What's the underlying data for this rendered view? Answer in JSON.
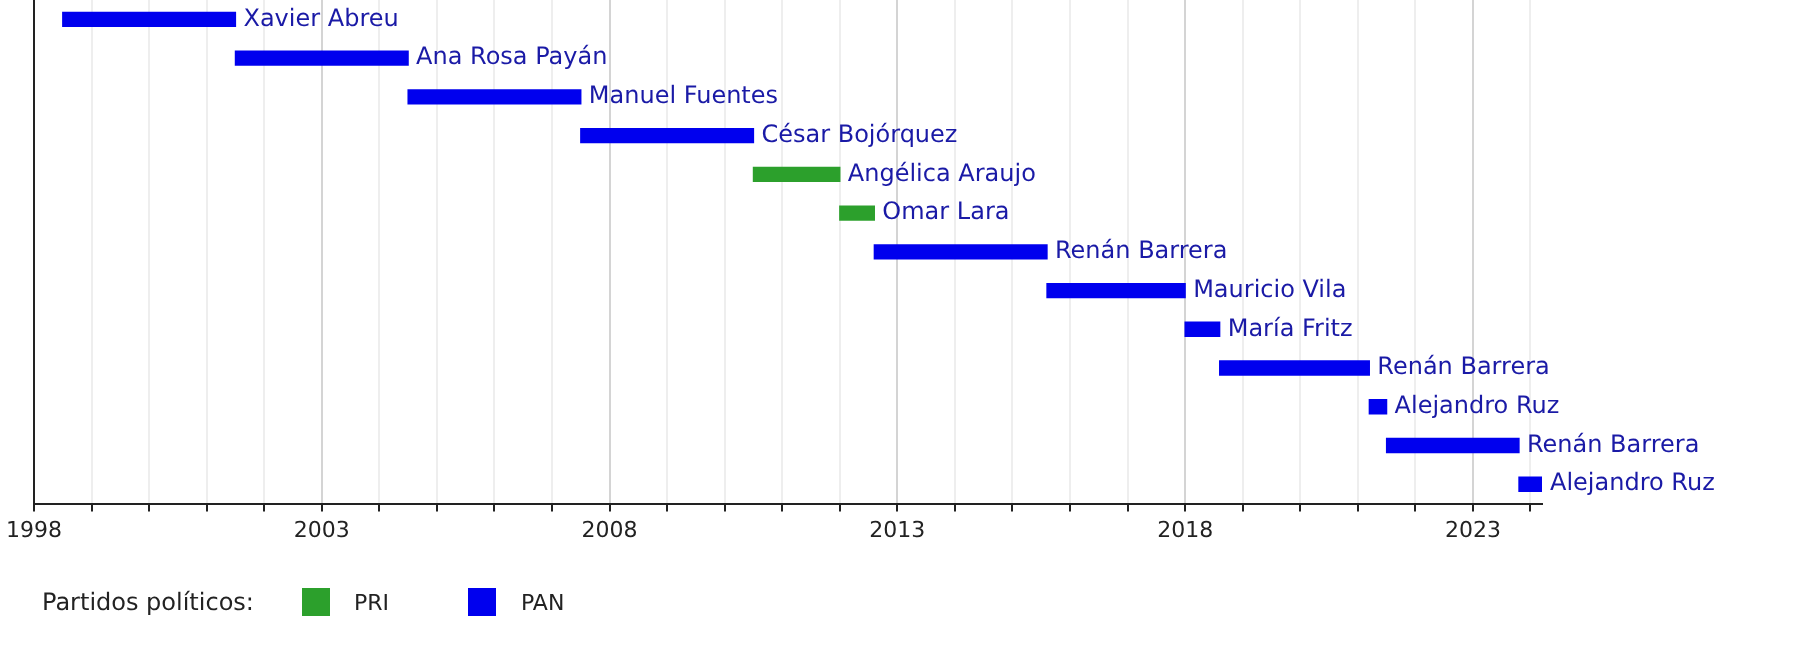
{
  "chart_data": {
    "type": "bar",
    "orientation": "horizontal",
    "categories": [
      null,
      null,
      null,
      null,
      null,
      null,
      null,
      null,
      null,
      null,
      null,
      null,
      null
    ],
    "series": [
      {
        "name": "PRI",
        "color": "#2ca02c",
        "base": [
          null,
          null,
          null,
          null,
          2010.5,
          2012.0,
          null,
          null,
          null,
          null,
          null,
          null,
          null
        ],
        "values": [
          null,
          null,
          null,
          null,
          1.5,
          0.6,
          null,
          null,
          null,
          null,
          null,
          null,
          null
        ],
        "value_labels": [
          null,
          null,
          null,
          null,
          "Angélica Araujo",
          "Omar Lara",
          null,
          null,
          null,
          null,
          null,
          null,
          null
        ]
      },
      {
        "name": "PAN",
        "color": "#0000ee",
        "base": [
          1998.5,
          2001.5,
          2004.5,
          2007.5,
          null,
          null,
          2012.6,
          2015.6,
          2018.0,
          2018.6,
          2021.2,
          2021.5,
          2023.8
        ],
        "values": [
          3.0,
          3.0,
          3.0,
          3.0,
          null,
          null,
          3.0,
          2.4,
          0.6,
          2.6,
          0.3,
          2.3,
          0.4
        ],
        "value_labels": [
          "Xavier Abreu",
          "Ana Rosa Payán",
          "Manuel Fuentes",
          "César Bojórquez",
          null,
          null,
          "Renán Barrera",
          "Mauricio Vila",
          "María Fritz",
          "Renán Barrera",
          "Alejandro Ruz",
          "Renán Barrera",
          "Alejandro Ruz"
        ]
      }
    ],
    "xlim": [
      1998,
      2024.2
    ],
    "xticks": [
      1998,
      {
        "value": 1999,
        "label": null
      },
      {
        "value": 2000,
        "label": null
      },
      {
        "value": 2001,
        "label": null
      },
      {
        "value": 2002,
        "label": null
      },
      2003,
      {
        "value": 2004,
        "label": null
      },
      {
        "value": 2005,
        "label": null
      },
      {
        "value": 2006,
        "label": null
      },
      {
        "value": 2007,
        "label": null
      },
      2008,
      {
        "value": 2009,
        "label": null
      },
      {
        "value": 2010,
        "label": null
      },
      {
        "value": 2011,
        "label": null
      },
      {
        "value": 2012,
        "label": null
      },
      2013,
      {
        "value": 2014,
        "label": null
      },
      {
        "value": 2015,
        "label": null
      },
      {
        "value": 2016,
        "label": null
      },
      {
        "value": 2017,
        "label": null
      },
      2018,
      {
        "value": 2019,
        "label": null
      },
      {
        "value": 2020,
        "label": null
      },
      {
        "value": 2021,
        "label": null
      },
      {
        "value": 2022,
        "label": null
      },
      2023,
      {
        "value": 2024,
        "label": null
      }
    ],
    "grid": "x",
    "tick_labels": "x",
    "legend": "bottom left",
    "legend_title": "Partidos políticos:"
  }
}
